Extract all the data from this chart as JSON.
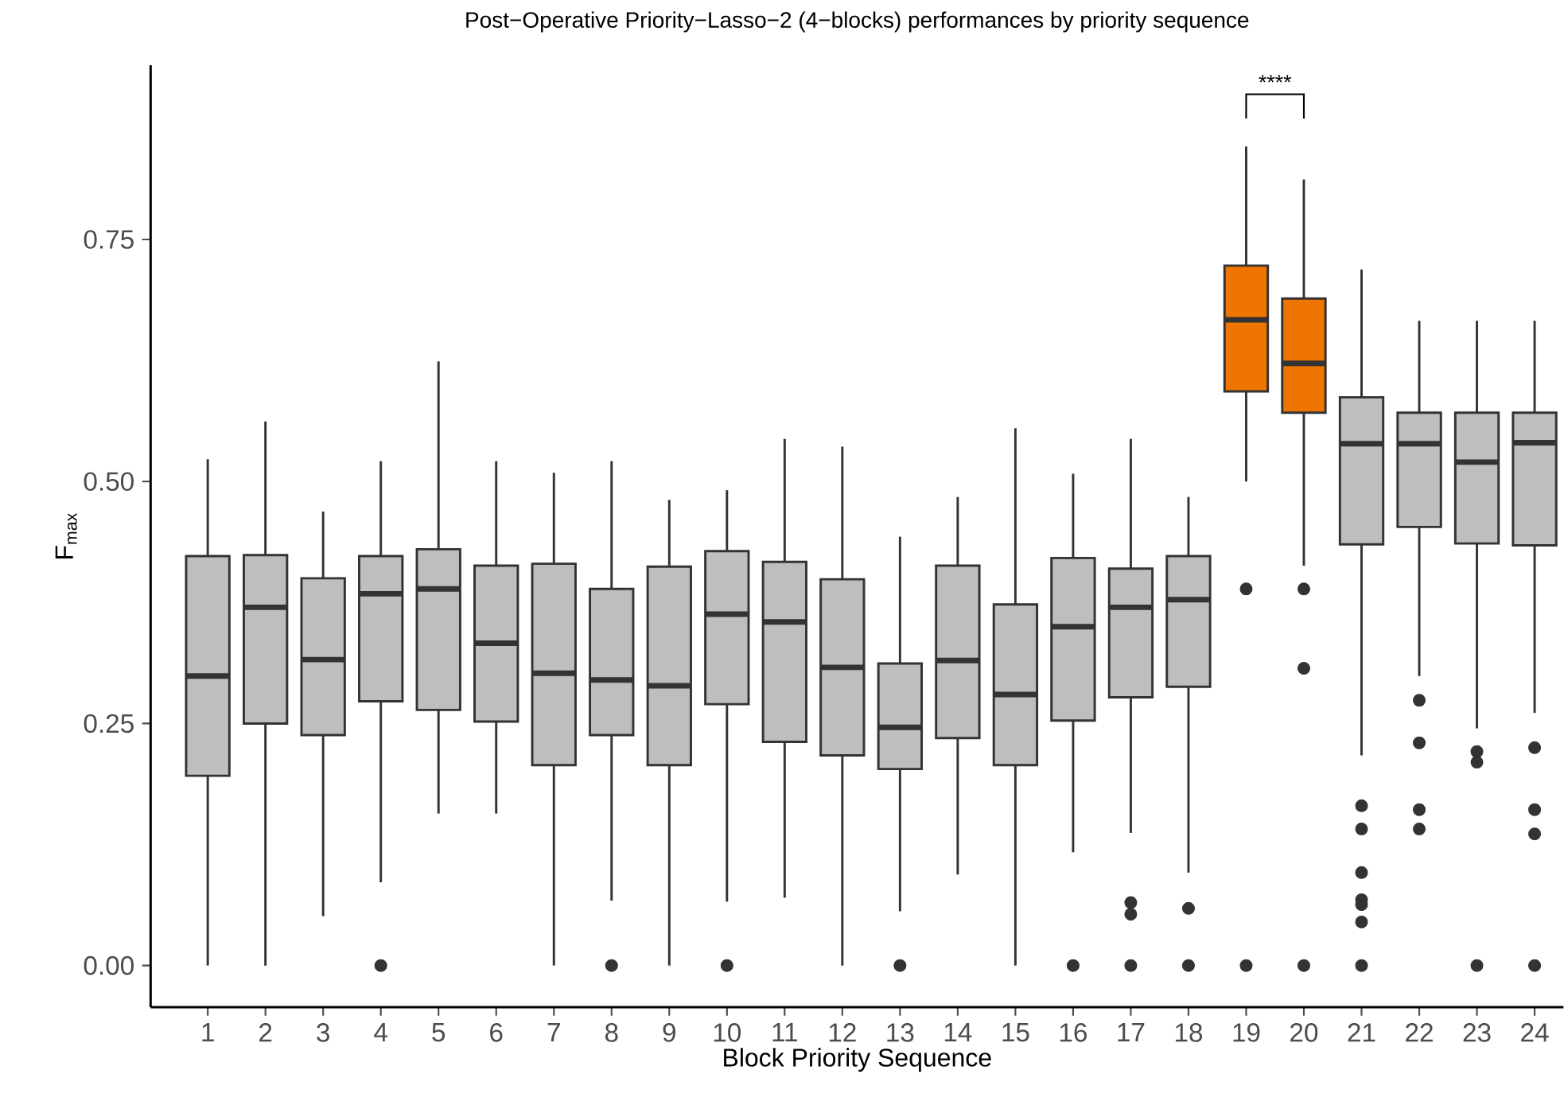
{
  "chart_data": {
    "type": "box",
    "title": "Post−Operative Priority−Lasso−2 (4−blocks) performances by priority sequence",
    "xlabel": "Block Priority Sequence",
    "ylabel": "F$_{max}$",
    "categories": [
      "1",
      "2",
      "3",
      "4",
      "5",
      "6",
      "7",
      "8",
      "9",
      "10",
      "11",
      "12",
      "13",
      "14",
      "15",
      "16",
      "17",
      "18",
      "19",
      "20",
      "21",
      "22",
      "23",
      "24"
    ],
    "colors": [
      "#bebebe",
      "#bebebe",
      "#bebebe",
      "#bebebe",
      "#bebebe",
      "#bebebe",
      "#bebebe",
      "#bebebe",
      "#bebebe",
      "#bebebe",
      "#bebebe",
      "#bebebe",
      "#bebebe",
      "#bebebe",
      "#bebebe",
      "#bebebe",
      "#bebebe",
      "#bebebe",
      "#ee7600",
      "#ee7600",
      "#bebebe",
      "#bebebe",
      "#bebebe",
      "#bebebe"
    ],
    "boxes": [
      {
        "low": 0,
        "q1": 0.196,
        "median": 0.299,
        "q3": 0.423,
        "high": 0.523
      },
      {
        "low": 0,
        "q1": 0.25,
        "median": 0.37,
        "q3": 0.424,
        "high": 0.562
      },
      {
        "low": 0.051,
        "q1": 0.238,
        "median": 0.316,
        "q3": 0.4,
        "high": 0.469
      },
      {
        "low": 0.086,
        "q1": 0.273,
        "median": 0.384,
        "q3": 0.423,
        "high": 0.521,
        "outliers": [
          0
        ]
      },
      {
        "low": 0.157,
        "q1": 0.264,
        "median": 0.389,
        "q3": 0.43,
        "high": 0.624
      },
      {
        "low": 0.157,
        "q1": 0.252,
        "median": 0.333,
        "q3": 0.413,
        "high": 0.521
      },
      {
        "low": 0,
        "q1": 0.207,
        "median": 0.302,
        "q3": 0.415,
        "high": 0.509
      },
      {
        "low": 0.067,
        "q1": 0.238,
        "median": 0.295,
        "q3": 0.389,
        "high": 0.521,
        "outliers": [
          0
        ]
      },
      {
        "low": 0,
        "q1": 0.207,
        "median": 0.289,
        "q3": 0.412,
        "high": 0.481
      },
      {
        "low": 0.066,
        "q1": 0.27,
        "median": 0.363,
        "q3": 0.428,
        "high": 0.491,
        "outliers": [
          0
        ]
      },
      {
        "low": 0.07,
        "q1": 0.231,
        "median": 0.355,
        "q3": 0.417,
        "high": 0.544
      },
      {
        "low": 0,
        "q1": 0.217,
        "median": 0.308,
        "q3": 0.399,
        "high": 0.536
      },
      {
        "low": 0.056,
        "q1": 0.203,
        "median": 0.246,
        "q3": 0.312,
        "high": 0.443,
        "outliers": [
          0
        ]
      },
      {
        "low": 0.094,
        "q1": 0.235,
        "median": 0.315,
        "q3": 0.413,
        "high": 0.484
      },
      {
        "low": 0,
        "q1": 0.207,
        "median": 0.28,
        "q3": 0.373,
        "high": 0.555
      },
      {
        "low": 0.117,
        "q1": 0.253,
        "median": 0.35,
        "q3": 0.421,
        "high": 0.508,
        "outliers": [
          0
        ]
      },
      {
        "low": 0.137,
        "q1": 0.277,
        "median": 0.37,
        "q3": 0.41,
        "high": 0.544,
        "outliers": [
          0.065,
          0.053,
          0
        ]
      },
      {
        "low": 0.096,
        "q1": 0.288,
        "median": 0.378,
        "q3": 0.423,
        "high": 0.484,
        "outliers": [
          0.059,
          0
        ]
      },
      {
        "low": 0.5,
        "q1": 0.593,
        "median": 0.667,
        "q3": 0.723,
        "high": 0.846,
        "outliers": [
          0.389,
          0
        ]
      },
      {
        "low": 0.413,
        "q1": 0.571,
        "median": 0.622,
        "q3": 0.689,
        "high": 0.812,
        "outliers": [
          0.389,
          0.307,
          0
        ]
      },
      {
        "low": 0.217,
        "q1": 0.435,
        "median": 0.539,
        "q3": 0.587,
        "high": 0.719,
        "outliers": [
          0.165,
          0.141,
          0.096,
          0.068,
          0.063,
          0.045,
          0
        ]
      },
      {
        "low": 0.299,
        "q1": 0.453,
        "median": 0.539,
        "q3": 0.571,
        "high": 0.666,
        "outliers": [
          0.274,
          0.23,
          0.161,
          0.141
        ]
      },
      {
        "low": 0.245,
        "q1": 0.436,
        "median": 0.52,
        "q3": 0.571,
        "high": 0.666,
        "outliers": [
          0.221,
          0.21,
          0
        ]
      },
      {
        "low": 0.261,
        "q1": 0.434,
        "median": 0.54,
        "q3": 0.571,
        "high": 0.666,
        "outliers": [
          0.225,
          0.161,
          0.136,
          0
        ]
      }
    ],
    "ylim": [
      -0.043,
      0.93
    ],
    "yticks": [
      {
        "value": 0,
        "label": "0.00"
      },
      {
        "value": 0.25,
        "label": "0.25"
      },
      {
        "value": 0.5,
        "label": "0.50"
      },
      {
        "value": 0.75,
        "label": "0.75"
      }
    ],
    "annotations": [
      "****"
    ]
  }
}
